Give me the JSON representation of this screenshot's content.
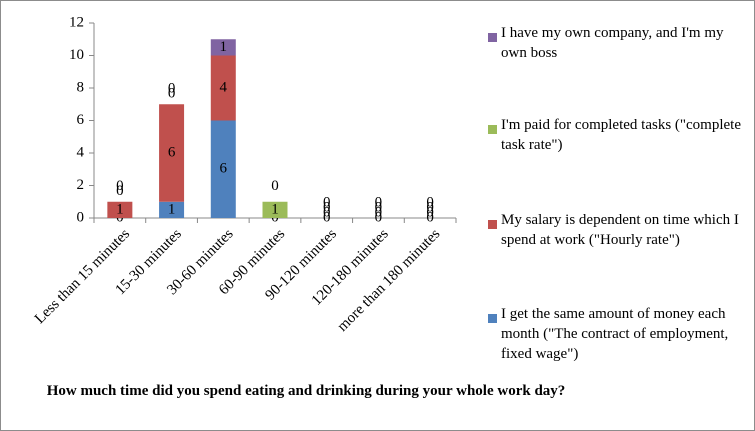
{
  "chart_data": {
    "type": "stacked_bar",
    "title": "How much time did you spend eating and drinking during your whole work day?",
    "categories": [
      "Less than 15 minutes",
      "15-30 minutes",
      "30-60 minutes",
      "60-90 minutes",
      "90-120 minutes",
      "120-180 minutes",
      "more than 180 minutes"
    ],
    "series": [
      {
        "name": "I get the same amount of money each month (\"The contract of employment, fixed wage\")",
        "color": "#4f81bd",
        "values": [
          0,
          1,
          6,
          0,
          0,
          0,
          0
        ]
      },
      {
        "name": "My salary is dependent on time which I spend at work (\"Hourly rate\")",
        "color": "#c0504d",
        "values": [
          1,
          6,
          4,
          0,
          0,
          0,
          0
        ]
      },
      {
        "name": "I'm paid for completed tasks (\"complete task rate\")",
        "color": "#9bbb59",
        "values": [
          0,
          0,
          0,
          1,
          0,
          0,
          0
        ]
      },
      {
        "name": "I have my own company, and I'm my own boss",
        "color": "#8064a2",
        "values": [
          0,
          0,
          1,
          0,
          0,
          0,
          0
        ]
      }
    ],
    "ylim": [
      0,
      12
    ],
    "yticks": [
      0,
      2,
      4,
      6,
      8,
      10,
      12
    ],
    "grid": false,
    "legend": "right"
  }
}
